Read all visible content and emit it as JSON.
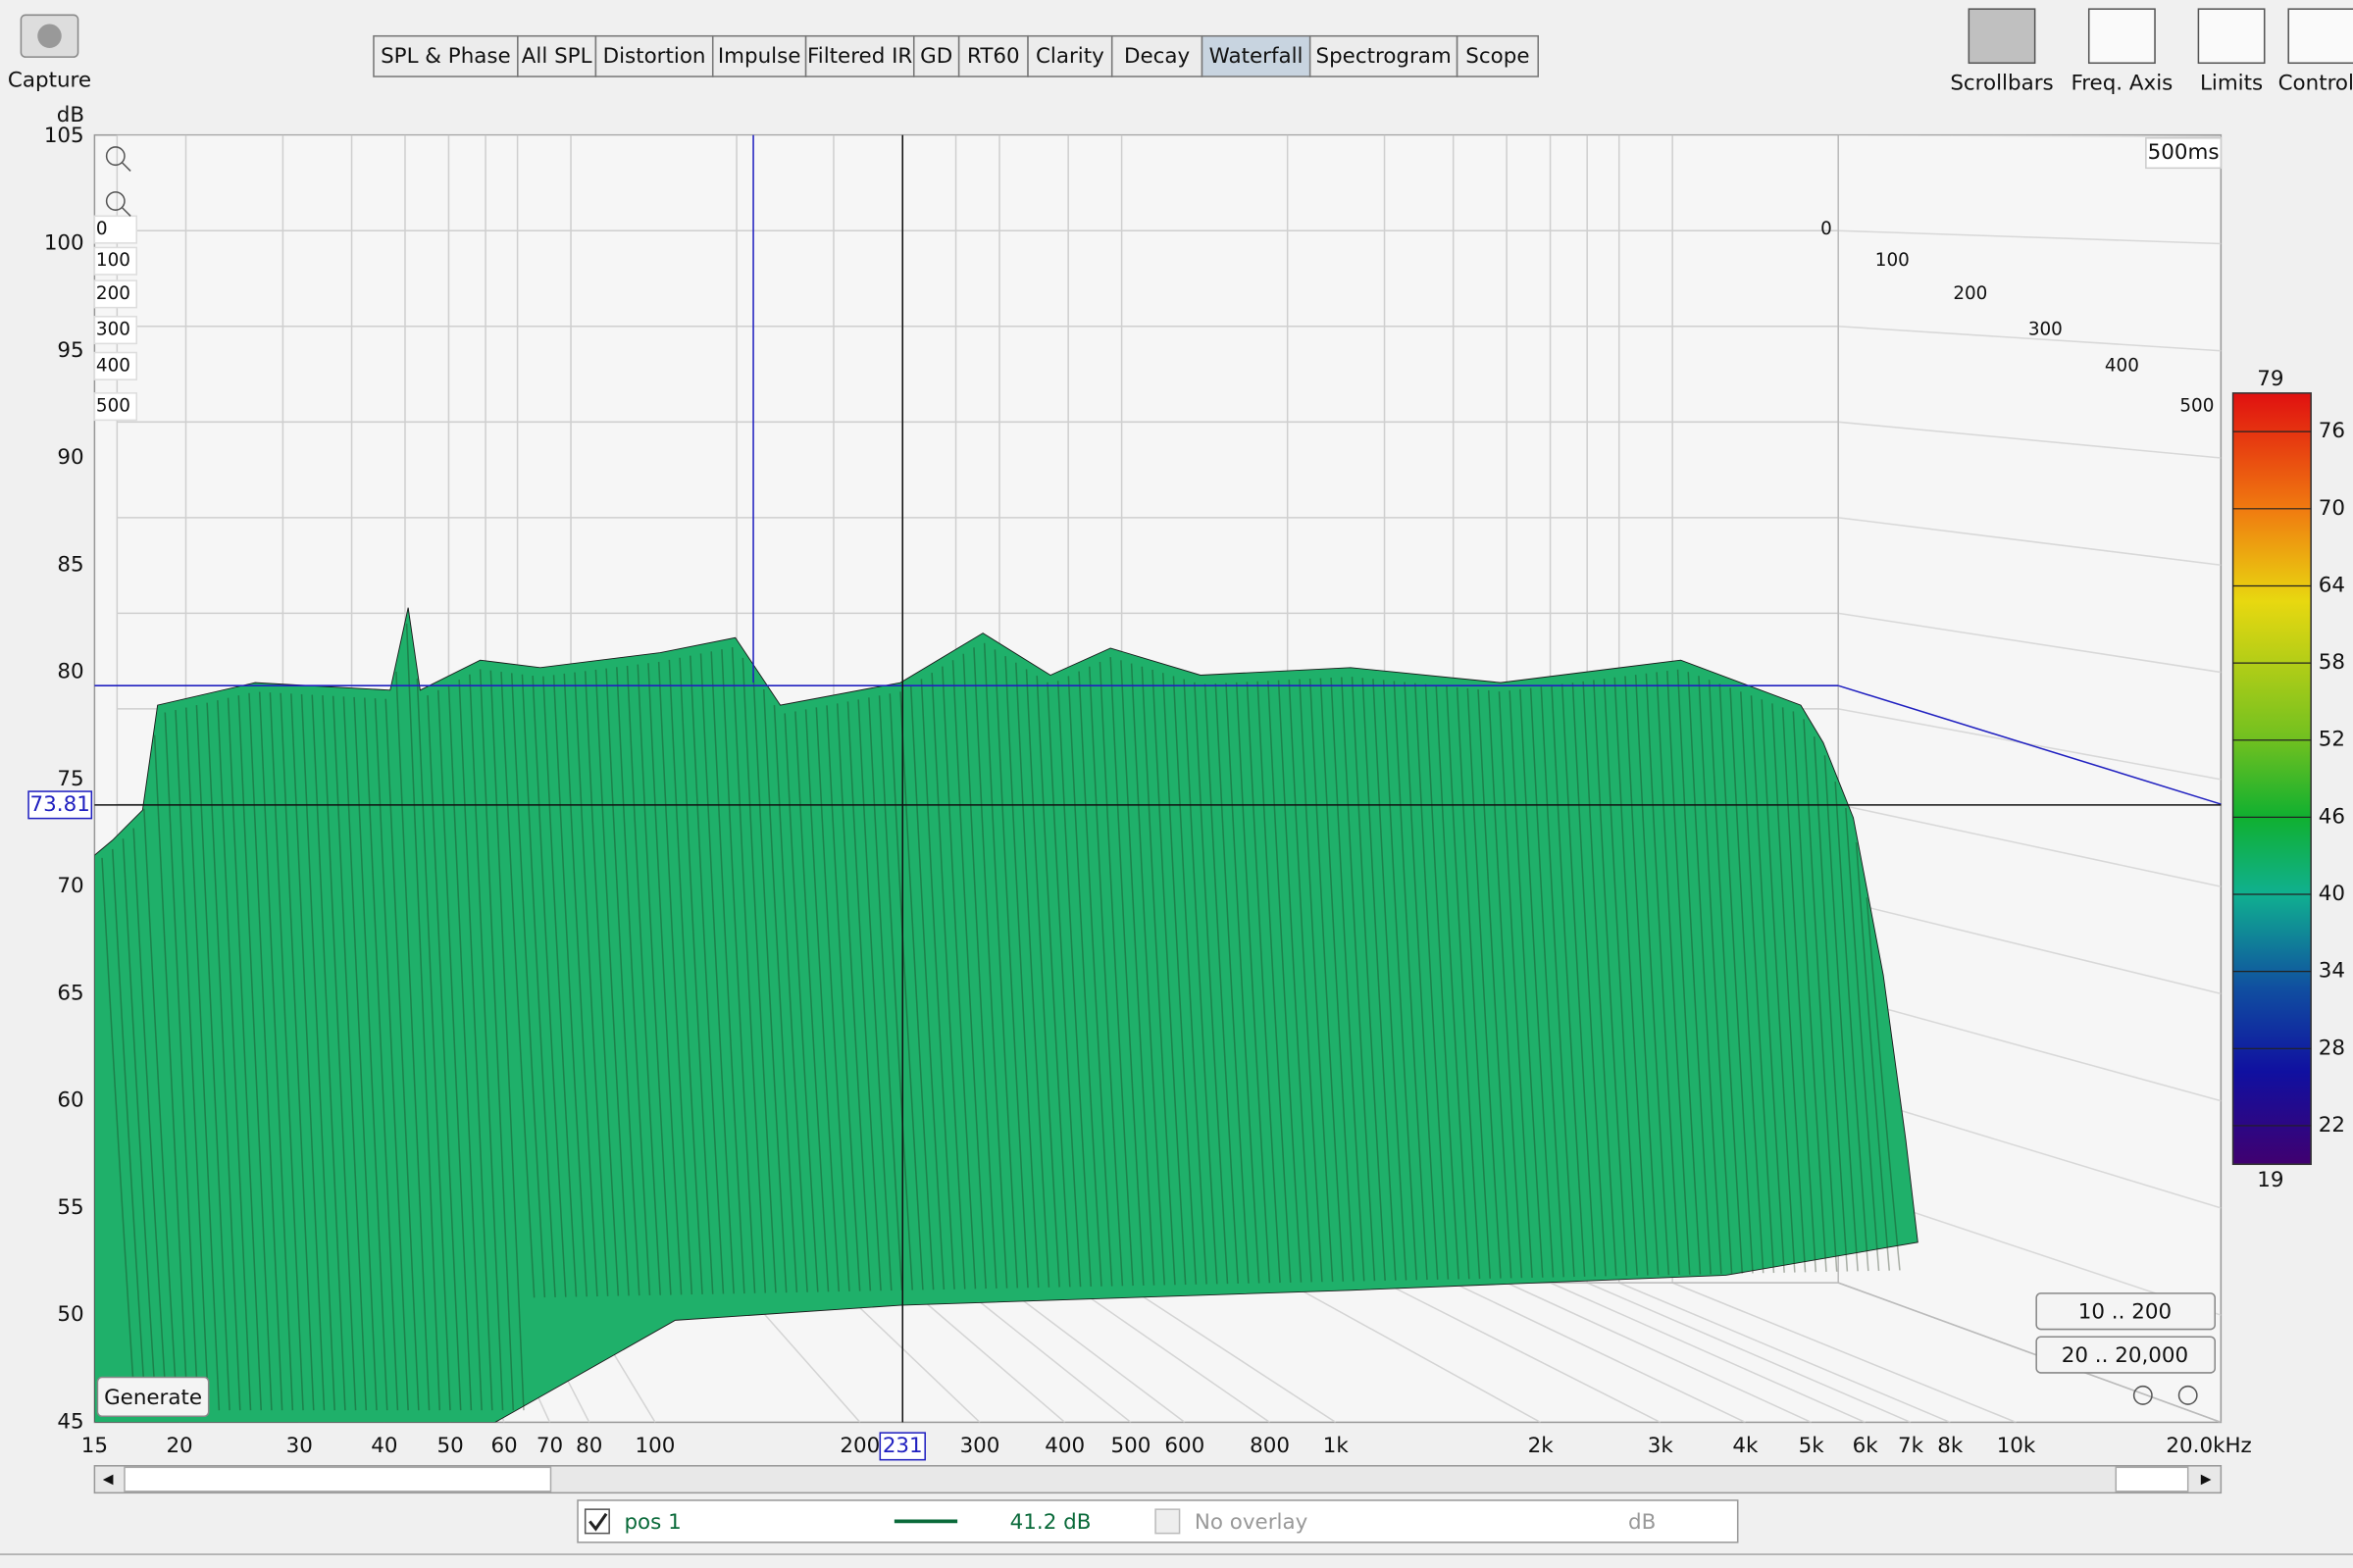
{
  "toolbar": {
    "capture": "Capture",
    "tabs": [
      "SPL & Phase",
      "All SPL",
      "Distortion",
      "Impulse",
      "Filtered IR",
      "GD",
      "RT60",
      "Clarity",
      "Decay",
      "Waterfall",
      "Spectrogram",
      "Scope"
    ],
    "active_tab": 9,
    "tools": [
      "Scrollbars",
      "Freq. Axis",
      "Limits",
      "Controls"
    ]
  },
  "chart": {
    "y_unit": "dB",
    "ylim": [
      45,
      105
    ],
    "yticks": [
      45,
      50,
      55,
      60,
      65,
      70,
      75,
      80,
      85,
      90,
      95,
      100,
      105
    ],
    "xlim": [
      15,
      20000
    ],
    "log_x": true,
    "xticks": [
      15,
      20,
      30,
      40,
      50,
      60,
      70,
      80,
      100,
      200,
      300,
      400,
      500,
      600,
      800,
      {
        "value": 1000,
        "label": "1k"
      },
      {
        "value": 2000,
        "label": "2k"
      },
      {
        "value": 3000,
        "label": "3k"
      },
      {
        "value": 4000,
        "label": "4k"
      },
      {
        "value": 5000,
        "label": "5k"
      },
      {
        "value": 6000,
        "label": "6k"
      },
      {
        "value": 7000,
        "label": "7k"
      },
      {
        "value": 8000,
        "label": "8k"
      },
      {
        "value": 10000,
        "label": "10k"
      },
      {
        "value": 20000,
        "label": "20.0kHz"
      }
    ],
    "cursor": {
      "freq": 231,
      "level": 73.81
    },
    "time_ticks_front": [
      0,
      100,
      200,
      300,
      400,
      500
    ],
    "time_ticks_back": [
      0,
      100,
      200,
      300,
      400,
      500
    ],
    "time_span": "500ms",
    "color_scale": {
      "lim": [
        19,
        79
      ],
      "ticks": [
        79,
        76,
        70,
        64,
        58,
        52,
        46,
        40,
        34,
        28,
        22,
        19
      ]
    },
    "buttons": {
      "generate": "Generate",
      "range_low": "10 .. 200",
      "range_full": "20 .. 20,000"
    }
  },
  "legend": {
    "name": "pos 1",
    "value": "41.2 dB",
    "overlay": "No overlay",
    "overlay_unit": "dB"
  }
}
